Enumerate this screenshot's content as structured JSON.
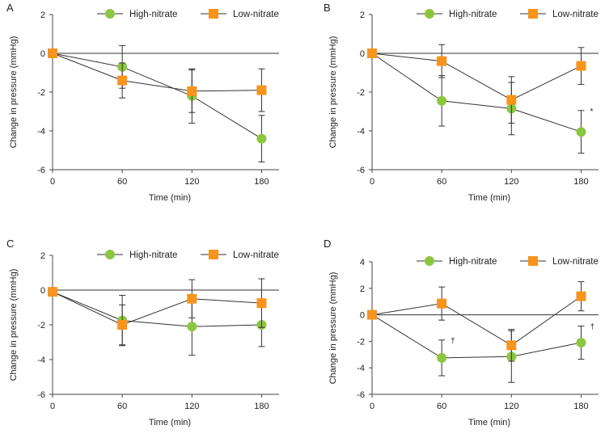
{
  "colors": {
    "high": "#8cc63f",
    "low": "#f7941d",
    "line": "#333333",
    "axis": "#444444",
    "error": "#333333"
  },
  "chart_data": [
    {
      "type": "line",
      "panel": "A",
      "xlabel": "Time (min)",
      "ylabel": "Change in pressure (mmHg)",
      "x": [
        0,
        60,
        120,
        180
      ],
      "xlim": [
        0,
        195
      ],
      "ylim": [
        -6,
        2
      ],
      "yticks": [
        2,
        0,
        -2,
        -4,
        -6
      ],
      "xticks": [
        0,
        60,
        120,
        180
      ],
      "series": [
        {
          "name": "High-nitrate",
          "marker": "circle",
          "values": [
            0,
            -0.7,
            -2.2,
            -4.4
          ],
          "err": [
            0,
            1.1,
            1.4,
            1.2
          ]
        },
        {
          "name": "Low-nitrate",
          "marker": "square",
          "values": [
            0,
            -1.4,
            -1.95,
            -1.9
          ],
          "err": [
            0,
            0.9,
            1.1,
            1.1
          ]
        }
      ],
      "annotations": []
    },
    {
      "type": "line",
      "panel": "B",
      "xlabel": "Time (min)",
      "ylabel": "Change in pressure (mmHg)",
      "x": [
        0,
        60,
        120,
        180
      ],
      "xlim": [
        0,
        195
      ],
      "ylim": [
        -6,
        2
      ],
      "yticks": [
        2,
        0,
        -2,
        -4,
        -6
      ],
      "xticks": [
        0,
        60,
        120,
        180
      ],
      "series": [
        {
          "name": "High-nitrate",
          "marker": "circle",
          "values": [
            0,
            -2.45,
            -2.85,
            -4.05
          ],
          "err": [
            0,
            1.3,
            1.35,
            1.1
          ]
        },
        {
          "name": "Low-nitrate",
          "marker": "square",
          "values": [
            0,
            -0.4,
            -2.4,
            -0.65
          ],
          "err": [
            0,
            0.85,
            1.2,
            0.95
          ]
        }
      ],
      "annotations": [
        {
          "text": "*",
          "series": 0,
          "index": 3
        }
      ]
    },
    {
      "type": "line",
      "panel": "C",
      "xlabel": "Time (min)",
      "ylabel": "Change in pressure (mmHg)",
      "x": [
        0,
        60,
        120,
        180
      ],
      "xlim": [
        0,
        195
      ],
      "ylim": [
        -6,
        2
      ],
      "yticks": [
        2,
        0,
        -2,
        -4,
        -6
      ],
      "xticks": [
        0,
        60,
        120,
        180
      ],
      "series": [
        {
          "name": "High-nitrate",
          "marker": "circle",
          "values": [
            -0.1,
            -1.75,
            -2.1,
            -2.0
          ],
          "err": [
            0,
            1.45,
            1.65,
            1.25
          ]
        },
        {
          "name": "Low-nitrate",
          "marker": "square",
          "values": [
            -0.1,
            -2.0,
            -0.5,
            -0.75
          ],
          "err": [
            0,
            1.15,
            1.1,
            1.4
          ]
        }
      ],
      "annotations": []
    },
    {
      "type": "line",
      "panel": "D",
      "xlabel": "Time (min)",
      "ylabel": "Change in pressure (mmHg)",
      "x": [
        0,
        60,
        120,
        180
      ],
      "xlim": [
        0,
        195
      ],
      "ylim": [
        -6,
        4
      ],
      "yticks": [
        4,
        2,
        0,
        -2,
        -4,
        -6
      ],
      "xticks": [
        0,
        60,
        120,
        180
      ],
      "series": [
        {
          "name": "High-nitrate",
          "marker": "circle",
          "values": [
            0,
            -3.25,
            -3.15,
            -2.1
          ],
          "err": [
            0,
            1.35,
            1.95,
            1.25
          ]
        },
        {
          "name": "Low-nitrate",
          "marker": "square",
          "values": [
            0,
            0.85,
            -2.3,
            1.4
          ],
          "err": [
            0,
            1.25,
            1.2,
            1.1
          ]
        }
      ],
      "annotations": [
        {
          "text": "†",
          "series": 0,
          "index": 1
        },
        {
          "text": "†",
          "series": 0,
          "index": 3
        }
      ]
    }
  ]
}
